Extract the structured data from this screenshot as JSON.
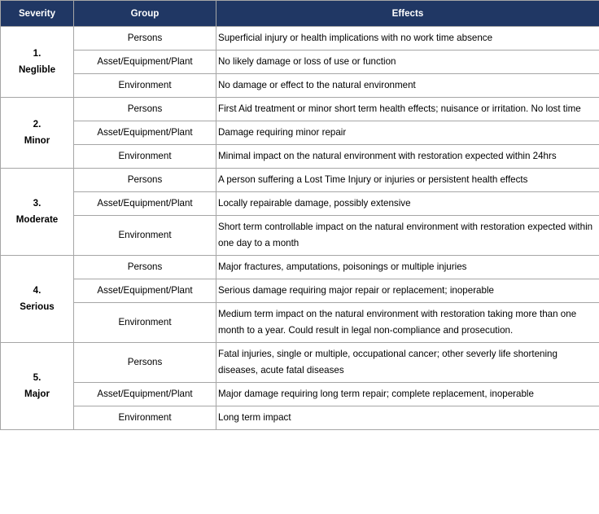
{
  "table": {
    "header": [
      "Severity",
      "Group",
      "Effects"
    ],
    "groups": [
      {
        "number": "1.",
        "label": "Neglible",
        "rows": [
          {
            "group": "Persons",
            "effect": "Superficial injury or health implications with no work time absence"
          },
          {
            "group": "Asset/Equipment/Plant",
            "effect": "No likely damage or loss of use or function"
          },
          {
            "group": "Environment",
            "effect": "No damage or effect to the natural environment"
          }
        ]
      },
      {
        "number": "2.",
        "label": "Minor",
        "rows": [
          {
            "group": "Persons",
            "effect": "First Aid treatment or minor short term health effects; nuisance or irritation. No lost time"
          },
          {
            "group": "Asset/Equipment/Plant",
            "effect": "Damage requiring minor repair"
          },
          {
            "group": "Environment",
            "effect": "Minimal impact on the natural environment with restoration expected within 24hrs"
          }
        ]
      },
      {
        "number": "3.",
        "label": "Moderate",
        "rows": [
          {
            "group": "Persons",
            "effect": "A person suffering a Lost Time Injury or injuries or persistent health effects"
          },
          {
            "group": "Asset/Equipment/Plant",
            "effect": "Locally repairable damage, possibly extensive"
          },
          {
            "group": "Environment",
            "effect": "Short term controllable impact on the natural environment with restoration expected within one day to a month"
          }
        ]
      },
      {
        "number": "4.",
        "label": "Serious",
        "rows": [
          {
            "group": "Persons",
            "effect": "Major fractures, amputations, poisonings or multiple injuries"
          },
          {
            "group": "Asset/Equipment/Plant",
            "effect": "Serious damage requiring major repair or replacement; inoperable"
          },
          {
            "group": "Environment",
            "effect": "Medium term impact on the natural environment with restoration taking more than one month to a year. Could result in legal non-compliance and prosecution."
          }
        ]
      },
      {
        "number": "5.",
        "label": "Major",
        "rows": [
          {
            "group": "Persons",
            "effect": "Fatal injuries, single or multiple, occupational cancer; other severly life shortening diseases, acute fatal diseases"
          },
          {
            "group": "Asset/Equipment/Plant",
            "effect": "Major damage requiring long term repair; complete replacement, inoperable"
          },
          {
            "group": "Environment",
            "effect": "Long term impact"
          }
        ]
      }
    ]
  }
}
